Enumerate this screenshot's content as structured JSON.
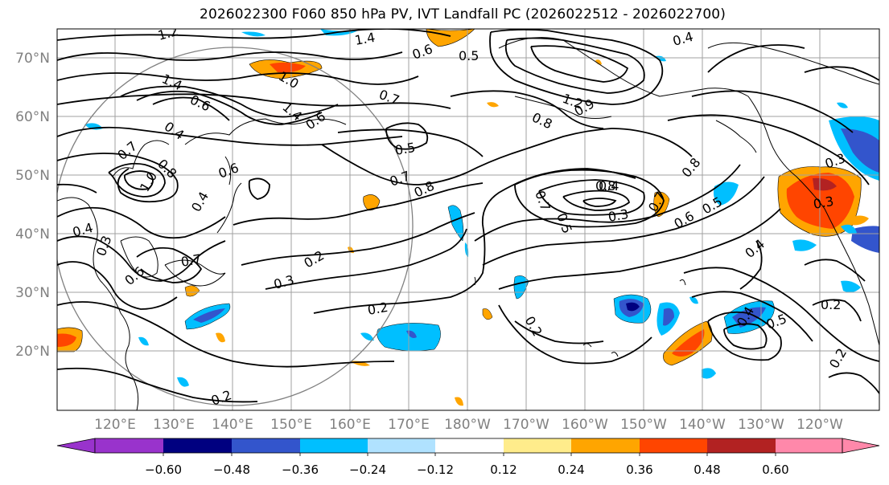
{
  "title": "2026022300 F060 850 hPa PV, IVT Landfall PC (2026022512 - 2026022700)",
  "lat_labels": [
    "70°N",
    "60°N",
    "50°N",
    "40°N",
    "30°N",
    "20°N"
  ],
  "lon_labels": [
    "120°E",
    "130°E",
    "140°E",
    "150°E",
    "160°E",
    "170°E",
    "180°W",
    "170°W",
    "160°W",
    "150°W",
    "140°W",
    "130°W",
    "120°W"
  ],
  "colorbar": {
    "colors": [
      "#9933cc",
      "#000080",
      "#3355cc",
      "#00bfff",
      "#b0e2ff",
      "#ffffff",
      "#ffec8b",
      "#ffa500",
      "#ff4500",
      "#b22222",
      "#ff88aa"
    ],
    "tick_labels": [
      "−0.60",
      "−0.48",
      "−0.36",
      "−0.24",
      "−0.12",
      "0.12",
      "0.24",
      "0.36",
      "0.48",
      "0.60"
    ]
  },
  "contour_labels": [
    "1.2",
    "1.4",
    "0.6",
    "0.5",
    "1.0",
    "0.4",
    "1.4",
    "0.6",
    "0.7",
    "1.2",
    "0.8",
    "0.4",
    "0.8",
    "1.4",
    "0.7",
    "0.6",
    "0.5",
    "1.0",
    "0.7",
    "0.8",
    "0.6",
    "0.9",
    "0.4",
    "0.4",
    "0.7",
    "0.6",
    "0.3",
    "0.3",
    "0.2",
    "0.2",
    "0.7",
    "0.8",
    "0.4",
    "0.3",
    "0.5",
    "0.7",
    "0.6",
    "0.5",
    "0.4",
    "0.2",
    "0.4",
    "0.5",
    "0.2",
    "0.2",
    "0.3",
    "0.3",
    "0.8",
    "0.2"
  ]
}
